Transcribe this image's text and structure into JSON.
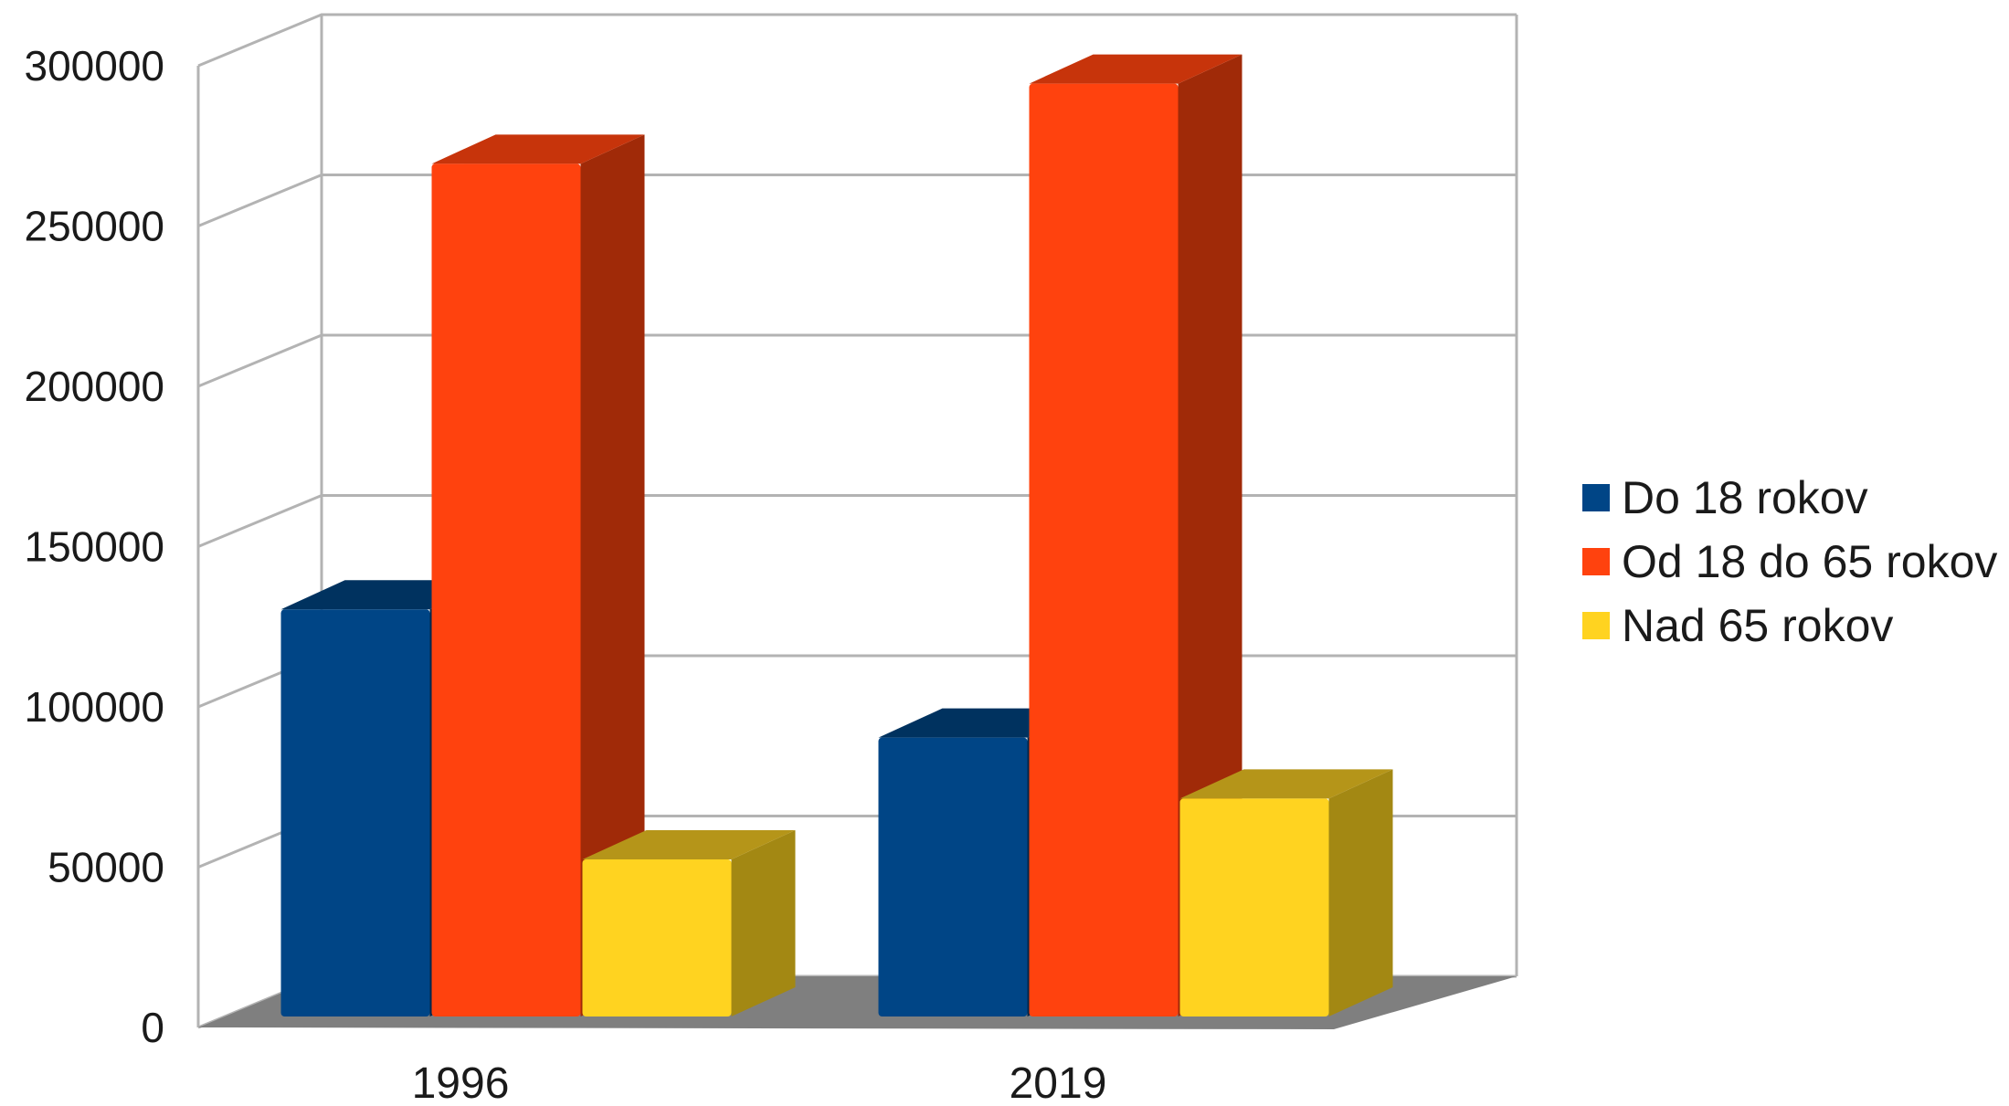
{
  "chart_data": {
    "type": "bar",
    "style": "3d-clustered",
    "categories": [
      "1996",
      "2019"
    ],
    "series": [
      {
        "name": "Do 18 rokov",
        "values": [
          127000,
          87000
        ],
        "color": "#004586",
        "top_color": "#00325f",
        "side_color": "#00264a"
      },
      {
        "name": "Od 18 do 65 rokov",
        "values": [
          266000,
          291000
        ],
        "color": "#ff420e",
        "top_color": "#c7340b",
        "side_color": "#a02a08"
      },
      {
        "name": "Nad 65 rokov",
        "values": [
          49000,
          68000
        ],
        "color": "#ffd320",
        "top_color": "#b59519",
        "side_color": "#a38813"
      }
    ],
    "yticks": [
      "0",
      "50000",
      "100000",
      "150000",
      "200000",
      "250000",
      "300000"
    ],
    "ylim": [
      0,
      300000
    ],
    "grid": true,
    "legend_position": "right",
    "title": "",
    "xlabel": "",
    "ylabel": ""
  }
}
